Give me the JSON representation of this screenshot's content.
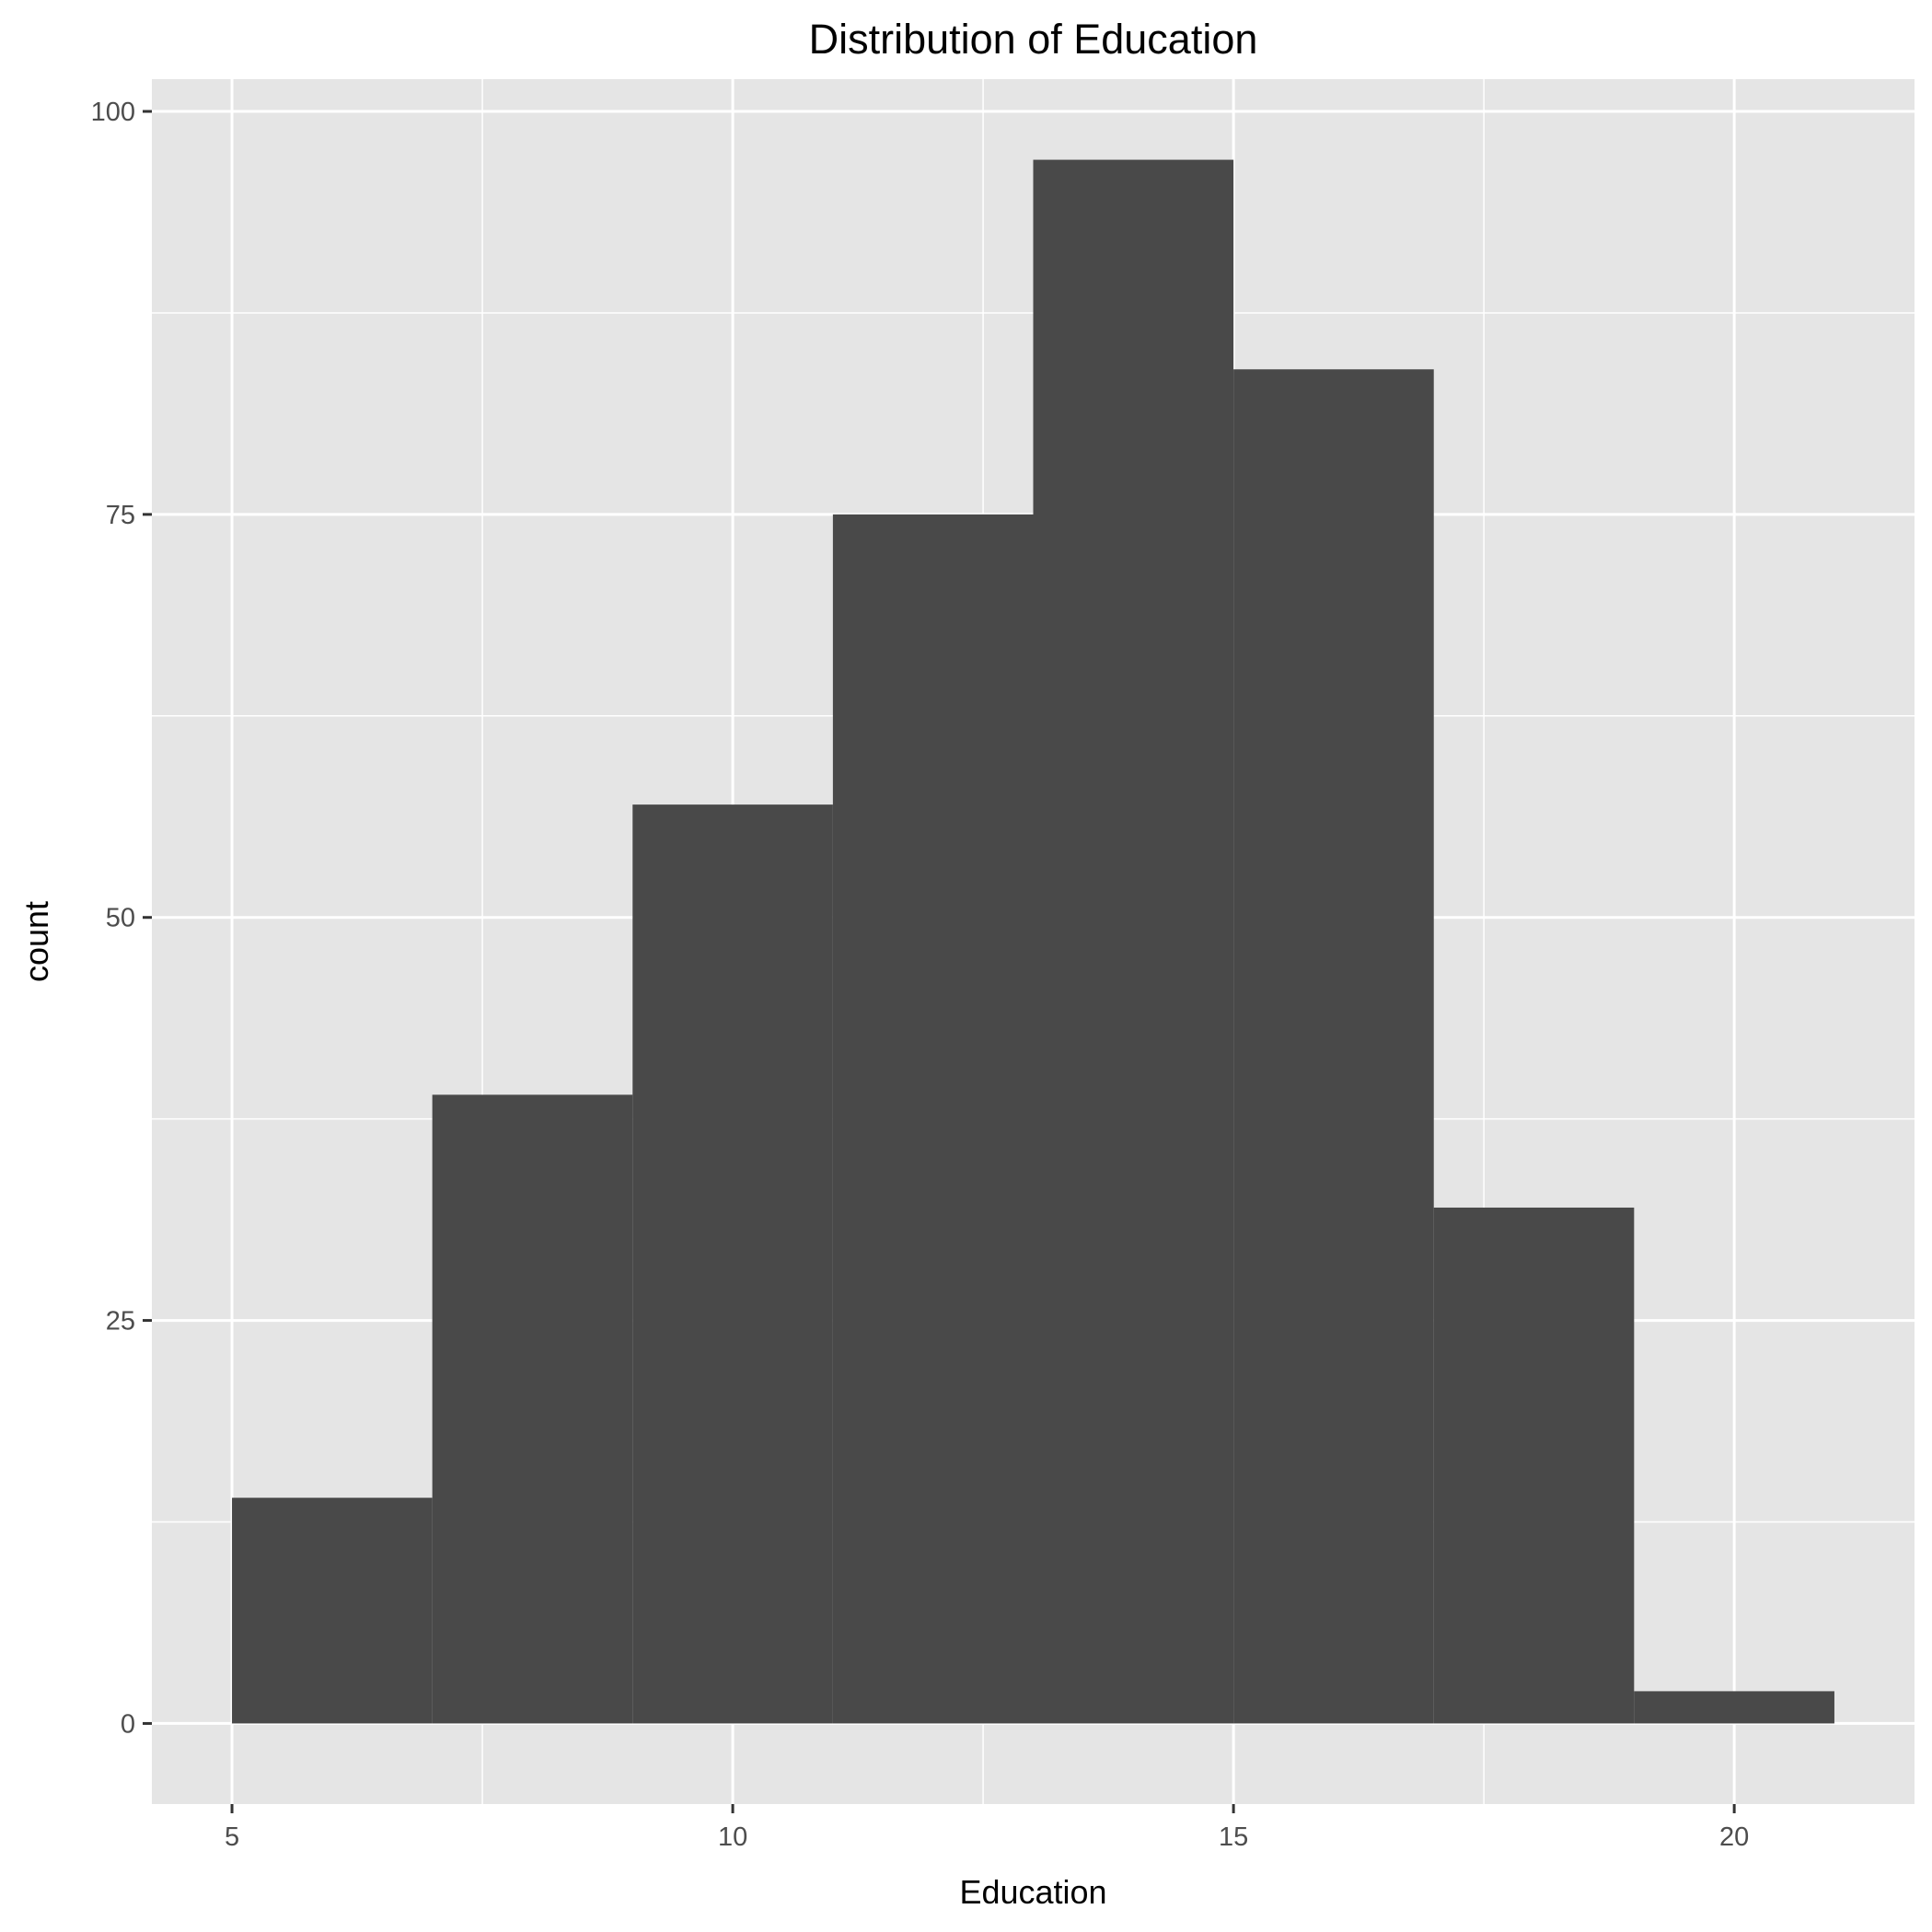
{
  "chart_data": {
    "type": "bar",
    "subtype": "histogram",
    "title": "Distribution of Education",
    "xlabel": "Education",
    "ylabel": "count",
    "bins": [
      {
        "x_start": 5,
        "x_end": 7,
        "count": 14
      },
      {
        "x_start": 7,
        "x_end": 9,
        "count": 39
      },
      {
        "x_start": 9,
        "x_end": 11,
        "count": 57
      },
      {
        "x_start": 11,
        "x_end": 13,
        "count": 75
      },
      {
        "x_start": 13,
        "x_end": 15,
        "count": 97
      },
      {
        "x_start": 15,
        "x_end": 17,
        "count": 84
      },
      {
        "x_start": 17,
        "x_end": 19,
        "count": 32
      },
      {
        "x_start": 19,
        "x_end": 21,
        "count": 2
      }
    ],
    "xlim": [
      4.2,
      21.8
    ],
    "ylim": [
      -5,
      102
    ],
    "x_ticks": [
      5,
      10,
      15,
      20
    ],
    "x_tick_labels": [
      "5",
      "10",
      "15",
      "20"
    ],
    "y_ticks": [
      0,
      25,
      50,
      75,
      100
    ],
    "y_tick_labels": [
      "0",
      "25",
      "50",
      "75",
      "100"
    ],
    "x_minor_grid": [
      7.5,
      12.5,
      17.5
    ],
    "y_minor_grid": [
      12.5,
      37.5,
      62.5,
      87.5
    ],
    "grid": true,
    "legend": "none",
    "colors": {
      "bar_fill": "#494949",
      "panel_background": "#e5e5e5",
      "grid": "#ffffff",
      "tick_label": "#4d4d4d",
      "text": "#000000"
    }
  }
}
